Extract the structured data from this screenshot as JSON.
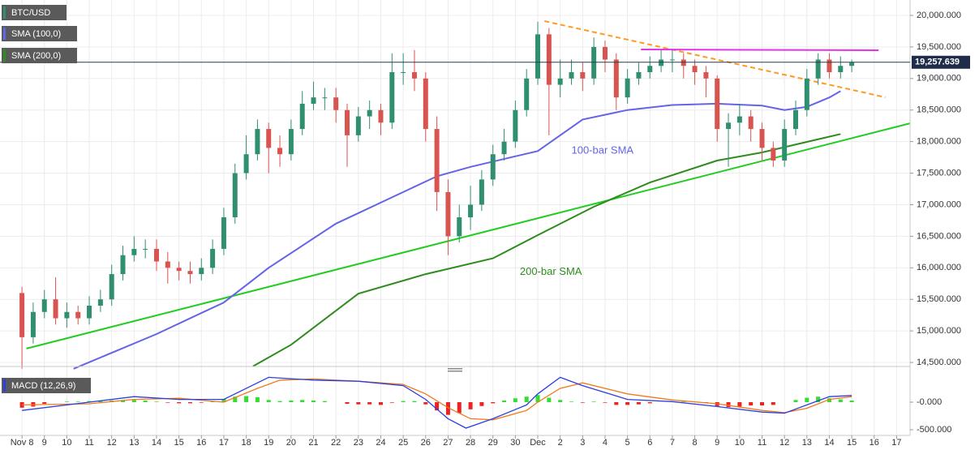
{
  "chart_data": {
    "type": "candlestick",
    "title": "BTC/USD",
    "up_color": "#2f8f6f",
    "down_color": "#d9534f",
    "x": [
      0,
      0.5,
      1,
      1.5,
      2,
      2.5,
      3,
      3.5,
      4,
      4.5,
      5,
      5.5,
      6,
      6.5,
      7,
      7.5,
      8,
      8.5,
      9,
      9.5,
      10,
      10.5,
      11,
      11.5,
      12,
      12.5,
      13,
      13.5,
      14,
      14.5,
      15,
      15.5,
      16,
      16.5,
      17,
      17.5,
      18,
      18.5,
      19,
      19.5,
      20,
      20.5,
      21,
      21.5,
      22,
      22.5,
      23,
      23.5,
      24,
      24.5,
      25,
      25.5,
      26,
      26.5,
      27,
      27.5,
      28,
      28.5,
      29,
      29.5,
      30,
      30.5,
      31,
      31.5,
      32,
      32.5,
      33,
      33.5,
      34,
      34.5,
      35,
      35.5,
      36,
      36.5,
      37
    ],
    "open": [
      15600,
      14900,
      15300,
      15500,
      15200,
      15300,
      15200,
      15400,
      15500,
      15900,
      16200,
      16300,
      16300,
      16100,
      16000,
      15950,
      15900,
      16000,
      16300,
      16800,
      17500,
      17800,
      18200,
      17900,
      17800,
      18200,
      18600,
      18700,
      18700,
      18500,
      18100,
      18400,
      18500,
      18300,
      19100,
      19100,
      19000,
      18200,
      17200,
      16500,
      16800,
      17000,
      17400,
      17800,
      18000,
      18500,
      19000,
      19700,
      18900,
      19000,
      19100,
      19000,
      19500,
      19300,
      18700,
      19000,
      19100,
      19200,
      19300,
      19300,
      19200,
      19100,
      19000,
      18200,
      18300,
      18400,
      18200,
      17900,
      17700,
      18200,
      18500,
      19000,
      19300,
      19100,
      19200
    ],
    "high": [
      15700,
      15450,
      15650,
      15850,
      15450,
      15400,
      15550,
      15650,
      16050,
      16350,
      16500,
      16450,
      16450,
      16250,
      16100,
      16100,
      16150,
      16450,
      16950,
      17650,
      18100,
      18350,
      18300,
      18100,
      18350,
      18800,
      18950,
      18850,
      18850,
      18600,
      18550,
      18650,
      18600,
      19400,
      19400,
      19450,
      19100,
      18400,
      17400,
      17000,
      17300,
      17550,
      17950,
      18200,
      18650,
      19150,
      19900,
      19800,
      19300,
      19300,
      19250,
      19650,
      19600,
      19400,
      19150,
      19250,
      19350,
      19450,
      19450,
      19400,
      19300,
      19200,
      19050,
      18450,
      18600,
      18500,
      18300,
      18000,
      18350,
      18650,
      19150,
      19400,
      19400,
      19350,
      19300
    ],
    "low": [
      14400,
      14800,
      15200,
      15100,
      15050,
      15100,
      15100,
      15300,
      15400,
      15800,
      16100,
      16150,
      15950,
      15750,
      15800,
      15750,
      15800,
      15900,
      16200,
      16700,
      17400,
      17700,
      17500,
      17600,
      17700,
      18100,
      18500,
      18500,
      18300,
      17600,
      18000,
      18200,
      18100,
      18200,
      18900,
      18800,
      18000,
      16900,
      16200,
      16400,
      16600,
      16900,
      17300,
      17700,
      17900,
      18400,
      18900,
      18100,
      18700,
      18900,
      18800,
      18900,
      19100,
      18500,
      18600,
      18900,
      19000,
      19100,
      19100,
      19000,
      18900,
      18700,
      18000,
      17600,
      18100,
      18000,
      17700,
      17600,
      17600,
      18100,
      18400,
      18900,
      19000,
      19000,
      19100
    ],
    "close": [
      14900,
      15300,
      15500,
      15200,
      15300,
      15200,
      15400,
      15500,
      15900,
      16200,
      16300,
      16300,
      16100,
      16000,
      15950,
      15900,
      16000,
      16300,
      16800,
      17500,
      17800,
      18200,
      17900,
      17800,
      18200,
      18600,
      18700,
      18700,
      18500,
      18100,
      18400,
      18500,
      18300,
      19100,
      19100,
      19000,
      18200,
      17200,
      16500,
      16800,
      17000,
      17400,
      17800,
      18000,
      18500,
      19000,
      19700,
      18900,
      19000,
      19100,
      19000,
      19500,
      19300,
      18700,
      19000,
      19100,
      19200,
      19300,
      19300,
      19200,
      19100,
      19000,
      18200,
      18300,
      18400,
      18200,
      17900,
      17700,
      18200,
      18500,
      19000,
      19300,
      19100,
      19200,
      19258
    ],
    "xlim": [
      -0.98,
      39.6
    ],
    "ylim": [
      14436,
      20244
    ],
    "yticks": [
      {
        "value": 14500,
        "label": "14,500.000"
      },
      {
        "value": 15000,
        "label": "15,000.000"
      },
      {
        "value": 15500,
        "label": "15,500.000"
      },
      {
        "value": 16000,
        "label": "16,000.000"
      },
      {
        "value": 16500,
        "label": "16,500.000"
      },
      {
        "value": 17000,
        "label": "17,000.000"
      },
      {
        "value": 17500,
        "label": "17,500.000"
      },
      {
        "value": 18000,
        "label": "18,000.000"
      },
      {
        "value": 18500,
        "label": "18,500.000"
      },
      {
        "value": 19000,
        "label": "19,000.000"
      },
      {
        "value": 19500,
        "label": "19,500.000"
      },
      {
        "value": 20000,
        "label": "20,000.000"
      }
    ],
    "xticks": [
      {
        "value": 0,
        "label": "Nov 8"
      },
      {
        "value": 1,
        "label": "9"
      },
      {
        "value": 2,
        "label": "10"
      },
      {
        "value": 3,
        "label": "11"
      },
      {
        "value": 4,
        "label": "12"
      },
      {
        "value": 5,
        "label": "13"
      },
      {
        "value": 6,
        "label": "14"
      },
      {
        "value": 7,
        "label": "15"
      },
      {
        "value": 8,
        "label": "16"
      },
      {
        "value": 9,
        "label": "17"
      },
      {
        "value": 10,
        "label": "18"
      },
      {
        "value": 11,
        "label": "19"
      },
      {
        "value": 12,
        "label": "20"
      },
      {
        "value": 13,
        "label": "21"
      },
      {
        "value": 14,
        "label": "22"
      },
      {
        "value": 15,
        "label": "23"
      },
      {
        "value": 16,
        "label": "24"
      },
      {
        "value": 17,
        "label": "25"
      },
      {
        "value": 18,
        "label": "26"
      },
      {
        "value": 19,
        "label": "27"
      },
      {
        "value": 20,
        "label": "28"
      },
      {
        "value": 21,
        "label": "29"
      },
      {
        "value": 22,
        "label": "30"
      },
      {
        "value": 23,
        "label": "Dec"
      },
      {
        "value": 24,
        "label": "2"
      },
      {
        "value": 25,
        "label": "3"
      },
      {
        "value": 26,
        "label": "4"
      },
      {
        "value": 27,
        "label": "5"
      },
      {
        "value": 28,
        "label": "6"
      },
      {
        "value": 29,
        "label": "7"
      },
      {
        "value": 30,
        "label": "8"
      },
      {
        "value": 31,
        "label": "9"
      },
      {
        "value": 32,
        "label": "10"
      },
      {
        "value": 33,
        "label": "11"
      },
      {
        "value": 34,
        "label": "12"
      },
      {
        "value": 35,
        "label": "13"
      },
      {
        "value": 36,
        "label": "14"
      },
      {
        "value": 37,
        "label": "15"
      },
      {
        "value": 38,
        "label": "16"
      },
      {
        "value": 39,
        "label": "17"
      }
    ],
    "grid": true,
    "series": [
      {
        "name": "SMA (100,0)",
        "color": "#6464e6",
        "x": [
          2.3,
          6,
          9,
          11,
          14,
          17,
          18.5,
          20,
          23,
          25,
          27,
          29,
          31,
          33,
          34,
          35,
          36,
          36.5
        ],
        "values": [
          14400,
          14950,
          15450,
          16000,
          16700,
          17200,
          17450,
          17600,
          17850,
          18350,
          18500,
          18580,
          18600,
          18570,
          18500,
          18550,
          18700,
          18800
        ]
      },
      {
        "name": "SMA (200,0)",
        "color": "#2e8b1e",
        "x": [
          10.3,
          12,
          15,
          18,
          21,
          23,
          25.5,
          28,
          31,
          33,
          35,
          36.5
        ],
        "values": [
          14440,
          14780,
          15590,
          15900,
          16150,
          16517,
          16967,
          17352,
          17700,
          17828,
          17995,
          18120
        ]
      }
    ],
    "trendlines": [
      {
        "color": "#22cc22",
        "dash": false,
        "x": [
          0.2,
          39.6
        ],
        "values": [
          14720,
          18290
        ]
      },
      {
        "color": "#ff9a1f",
        "dash": true,
        "x": [
          23.3,
          38.5
        ],
        "values": [
          19910,
          18702
        ]
      },
      {
        "color": "#e632e6",
        "dash": false,
        "x": [
          27.6,
          38.2
        ],
        "values": [
          19460,
          19447
        ]
      }
    ],
    "annotations": [
      {
        "text": "100-bar SMA",
        "x": 24.5,
        "y": 17850,
        "color": "#6464e6"
      },
      {
        "text": "200-bar SMA",
        "x": 22.2,
        "y": 15930,
        "color": "#2e8b1e"
      }
    ],
    "last_price": {
      "value": 19257.639,
      "label": "19,257.639"
    },
    "macd": {
      "name": "MACD (12,26,9)",
      "y2lim": [
        -603,
        603
      ],
      "y2ticks": [
        {
          "value": 0,
          "label": "-0.000"
        },
        {
          "value": -500,
          "label": "-500.000"
        }
      ],
      "histogram": [
        -100,
        -80,
        -30,
        0,
        10,
        10,
        20,
        20,
        30,
        40,
        40,
        30,
        10,
        -10,
        -20,
        -20,
        -10,
        20,
        60,
        100,
        110,
        90,
        40,
        20,
        30,
        40,
        30,
        20,
        0,
        -30,
        -40,
        -40,
        -50,
        -10,
        20,
        20,
        -40,
        -150,
        -230,
        -200,
        -130,
        -70,
        -20,
        30,
        70,
        100,
        130,
        80,
        40,
        10,
        -10,
        10,
        -10,
        -50,
        -50,
        -40,
        -20,
        0,
        10,
        10,
        0,
        -10,
        -70,
        -90,
        -80,
        -60,
        -60,
        -50,
        0,
        40,
        80,
        100,
        70,
        50,
        30
      ],
      "macd_line": {
        "color": "#2b3fe0",
        "x": [
          0,
          3,
          5,
          7,
          9,
          10.5,
          11,
          13,
          15,
          17,
          18,
          19,
          19.8,
          21,
          22.5,
          23,
          24,
          25,
          27,
          29,
          31,
          33,
          34,
          35,
          36,
          37
        ],
        "values": [
          -150,
          0,
          100,
          50,
          50,
          350,
          450,
          400,
          380,
          300,
          50,
          -300,
          -470,
          -300,
          -50,
          150,
          450,
          300,
          50,
          10,
          -80,
          -180,
          -200,
          -50,
          100,
          120
        ]
      },
      "signal_line": {
        "color": "#f07a1a",
        "x": [
          0,
          3,
          5,
          7,
          9,
          10.5,
          11.5,
          13,
          15,
          17,
          18,
          19,
          20,
          21,
          22.5,
          23,
          24,
          25,
          27,
          29,
          31,
          33,
          34,
          35,
          36,
          37
        ],
        "values": [
          -50,
          -30,
          50,
          70,
          0,
          250,
          400,
          420,
          380,
          320,
          150,
          -100,
          -300,
          -320,
          -150,
          0,
          250,
          350,
          150,
          40,
          -30,
          -150,
          -190,
          -110,
          50,
          100
        ]
      }
    }
  }
}
